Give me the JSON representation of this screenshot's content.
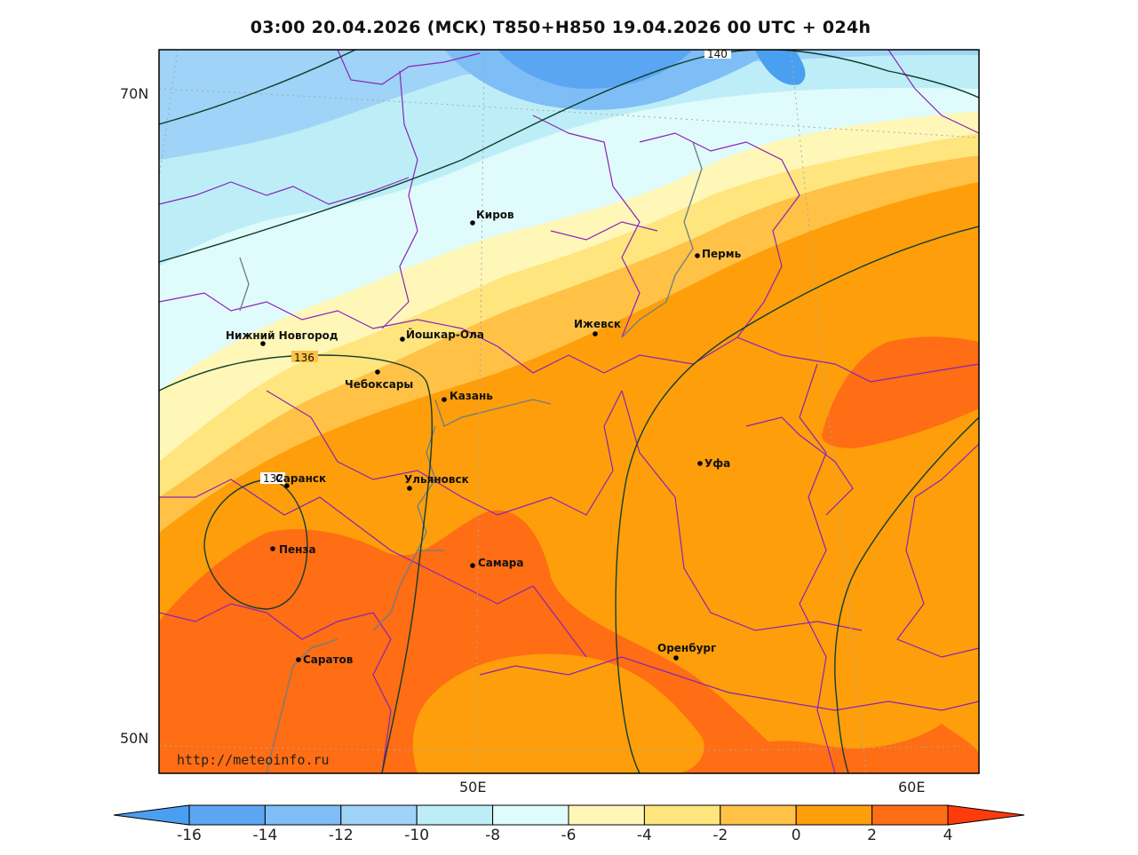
{
  "title": "03:00 20.04.2026 (МСК) T850+H850 19.04.2026 00 UTC + 024h",
  "watermark": "http://meteoinfo.ru",
  "lat_labels": [
    "70N",
    "50N"
  ],
  "lon_labels": [
    "50E",
    "60E"
  ],
  "colorbar": {
    "ticks": [
      "-16",
      "-14",
      "-12",
      "-10",
      "-8",
      "-6",
      "-4",
      "-2",
      "0",
      "2",
      "4"
    ],
    "colors": [
      "#4b9ff0",
      "#5aa6f2",
      "#7ebdf5",
      "#9fd3f7",
      "#bdeef7",
      "#e0fbfb",
      "#fff7b8",
      "#ffe57e",
      "#ffc246",
      "#fe9e0a",
      "#ff6d14",
      "#ff3b0b"
    ]
  },
  "cities": [
    {
      "name": "Киров"
    },
    {
      "name": "Пермь"
    },
    {
      "name": "Нижний Новгород"
    },
    {
      "name": "Йошкар-Ола"
    },
    {
      "name": "Ижевск"
    },
    {
      "name": "Чебоксары"
    },
    {
      "name": "Казань"
    },
    {
      "name": "Саранск"
    },
    {
      "name": "Ульяновск"
    },
    {
      "name": "Уфа"
    },
    {
      "name": "Пенза"
    },
    {
      "name": "Самара"
    },
    {
      "name": "Оренбург"
    },
    {
      "name": "Саратов"
    }
  ],
  "contour_labels": [
    "140",
    "136",
    "132"
  ]
}
